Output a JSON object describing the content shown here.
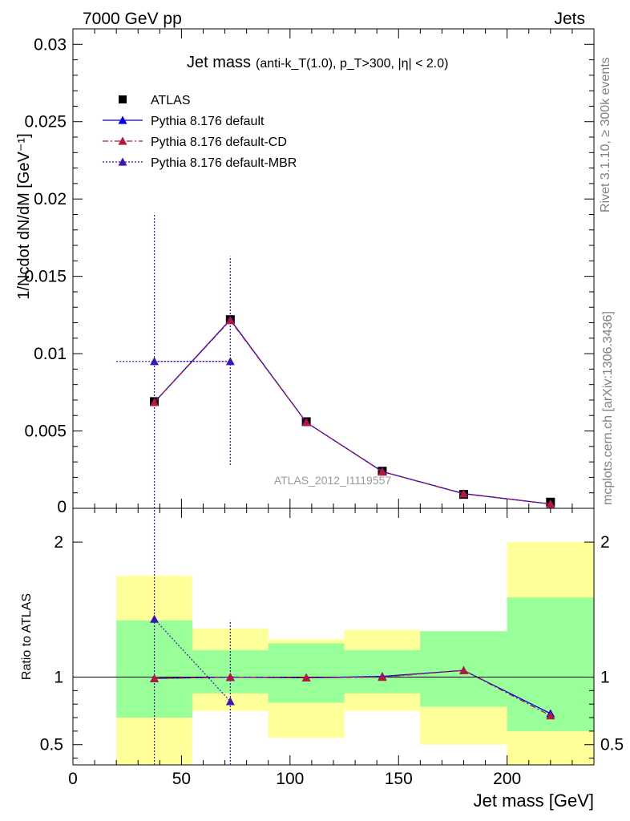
{
  "header": {
    "left": "7000 GeV pp",
    "right": "Jets"
  },
  "side_labels": {
    "rivet": "Rivet 3.1.10, ≥ 300k events",
    "mcplots": "mcplots.cern.ch [arXiv:1306.3436]"
  },
  "chart_data": [
    {
      "type": "scatter",
      "panel": "main",
      "title_main": "Jet mass",
      "title_sub": "(anti-k_T(1.0), p_T>300, |η| < 2.0)",
      "ylabel": "1/Ncdot dN/dM [GeV⁻¹]",
      "watermark": "ATLAS_2012_I1119557",
      "xlim": [
        0,
        240
      ],
      "ylim": [
        0,
        0.031
      ],
      "x_ticks": [
        0,
        50,
        100,
        150,
        200
      ],
      "y_ticks": [
        0.005,
        0.01,
        0.015,
        0.02,
        0.025,
        0.03
      ],
      "y_tick_labels": [
        "0.005",
        "0.01",
        "0.015",
        "0.02",
        "0.025",
        "0.03"
      ],
      "y_zero_label": "0",
      "legend_position": "top-left",
      "x": [
        37.5,
        72.5,
        107.5,
        142.5,
        180,
        220
      ],
      "bin_edges": [
        20,
        55,
        90,
        125,
        160,
        200,
        240
      ],
      "series": [
        {
          "name": "ATLAS",
          "style": "square-marker",
          "color": "#000000",
          "values": [
            0.0069,
            0.0122,
            0.0056,
            0.0024,
            0.0009,
            0.0004
          ]
        },
        {
          "name": "Pythia 8.176 default",
          "style": "solid",
          "color": "#0000ee",
          "values": [
            0.00685,
            0.0122,
            0.00556,
            0.00238,
            0.00095,
            0.00028
          ]
        },
        {
          "name": "Pythia 8.176 default-CD",
          "style": "dashdot",
          "color": "#b5173f",
          "values": [
            0.00685,
            0.01215,
            0.00556,
            0.00237,
            0.00094,
            0.00029
          ]
        },
        {
          "name": "Pythia 8.176 default-MBR",
          "style": "dotted",
          "color": "#3b15b5",
          "values": [
            0.0095,
            0.0095
          ],
          "x": [
            37.5,
            72.5
          ],
          "x_err": [
            [
              20,
              72.5
            ],
            [
              37.5,
              72.5
            ]
          ],
          "y_err": [
            [
              0,
              0.0191
            ],
            [
              0.0028,
              0.0163
            ]
          ]
        }
      ]
    },
    {
      "type": "scatter",
      "panel": "ratio",
      "ylabel": "Ratio to ATLAS",
      "xlabel": "Jet mass [GeV]",
      "xlim": [
        0,
        240
      ],
      "ylim": [
        0.35,
        2.25
      ],
      "y_ticks": [
        0.5,
        1,
        2
      ],
      "y_tick_labels": [
        "0.5",
        "1",
        "2"
      ],
      "x_tick_labels": [
        "0",
        "50",
        "100",
        "150",
        "200"
      ],
      "reference_line": 1,
      "bands": {
        "edges": [
          20,
          55,
          90,
          125,
          160,
          200,
          240
        ],
        "outer": {
          "color": "#ffff99",
          "low": [
            0.35,
            0.75,
            0.55,
            0.75,
            0.5,
            0.35
          ],
          "high": [
            1.75,
            1.36,
            1.28,
            1.35,
            1.31,
            2.0
          ]
        },
        "inner": {
          "color": "#99ff99",
          "low": [
            0.7,
            0.88,
            0.81,
            0.88,
            0.78,
            0.6
          ],
          "high": [
            1.42,
            1.2,
            1.25,
            1.2,
            1.34,
            1.59
          ]
        }
      },
      "x": [
        37.5,
        72.5,
        107.5,
        142.5,
        180,
        220
      ],
      "series": [
        {
          "name": "Pythia 8.176 default",
          "style": "solid",
          "color": "#0000ee",
          "values": [
            0.99,
            1.0,
            0.995,
            1.005,
            1.05,
            0.73
          ]
        },
        {
          "name": "Pythia 8.176 default-CD",
          "style": "dashdot",
          "color": "#b5173f",
          "values": [
            0.99,
            1.0,
            0.995,
            1.0,
            1.05,
            0.715
          ]
        },
        {
          "name": "Pythia 8.176 default-MBR",
          "style": "dotted",
          "color": "#3b15b5",
          "values": [
            1.43,
            0.82
          ],
          "x": [
            37.5,
            72.5
          ],
          "y_err": [
            [
              0.35,
              2.25
            ],
            [
              0.35,
              1.42
            ]
          ]
        }
      ]
    }
  ]
}
